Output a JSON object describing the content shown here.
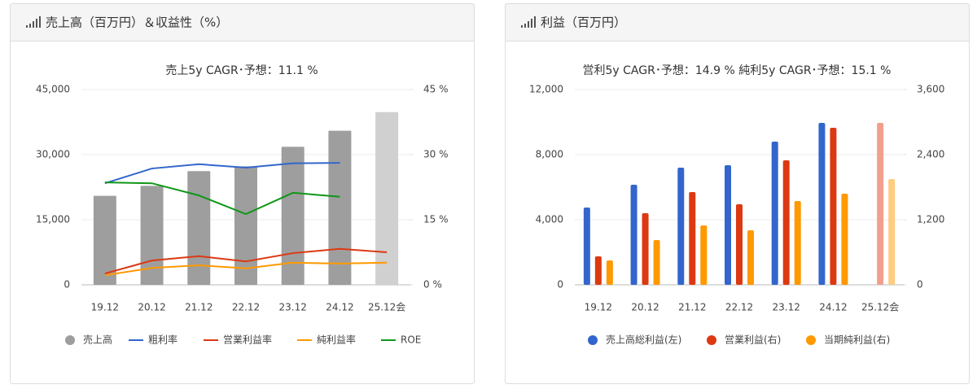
{
  "chart_data": [
    {
      "type": "bar_line",
      "title": "売上高（百万円）＆収益性（%）",
      "subtitle": "売上5y CAGR･予想：11.1 %",
      "categories": [
        "19.12",
        "20.12",
        "21.12",
        "22.12",
        "23.12",
        "24.12",
        "25.12会"
      ],
      "ylim": [
        0,
        45000
      ],
      "yticks": [
        0,
        {
          "value": 15000,
          "label": "15,000"
        },
        {
          "value": 30000,
          "label": "30,000"
        },
        {
          "value": 45000,
          "label": "45,000"
        }
      ],
      "y2lim": [
        0,
        45
      ],
      "y2ticks": [
        {
          "value": 0,
          "label": "0 %"
        },
        {
          "value": 15,
          "label": "15 %"
        },
        {
          "value": 30,
          "label": "30 %"
        },
        {
          "value": 45,
          "label": "45 %"
        }
      ],
      "grid": true,
      "series": [
        {
          "name": "売上高",
          "kind": "bar",
          "color": "#9e9e9e",
          "colors": [
            "#9e9e9e",
            "#9e9e9e",
            "#9e9e9e",
            "#9e9e9e",
            "#9e9e9e",
            "#9e9e9e",
            "#d0d0d0"
          ],
          "values": [
            20500,
            22800,
            26200,
            27300,
            31800,
            35500,
            39800
          ]
        },
        {
          "name": "粗利率",
          "kind": "line",
          "axis": "y2",
          "color": "#3366cc",
          "values": [
            23.4,
            26.8,
            27.8,
            27.0,
            28.0,
            28.1,
            null
          ]
        },
        {
          "name": "営業利益率",
          "kind": "line",
          "axis": "y2",
          "color": "#dc3912",
          "values": [
            2.6,
            5.6,
            6.6,
            5.4,
            7.3,
            8.3,
            7.5
          ]
        },
        {
          "name": "純利益率",
          "kind": "line",
          "axis": "y2",
          "color": "#ff9900",
          "values": [
            2.2,
            3.9,
            4.5,
            3.8,
            5.1,
            4.9,
            5.1
          ]
        },
        {
          "name": "ROE",
          "kind": "line",
          "axis": "y2",
          "color": "#109618",
          "values": [
            23.6,
            23.4,
            20.6,
            16.3,
            21.2,
            20.3,
            null
          ]
        }
      ]
    },
    {
      "type": "bar",
      "title": "利益（百万円）",
      "subtitle": "営利5y CAGR･予想：14.9 %  純利5y CAGR･予想：15.1 %",
      "categories": [
        "19.12",
        "20.12",
        "21.12",
        "22.12",
        "23.12",
        "24.12",
        "25.12会"
      ],
      "ylim": [
        0,
        12000
      ],
      "yticks": [
        0,
        {
          "value": 4000,
          "label": "4,000"
        },
        {
          "value": 8000,
          "label": "8,000"
        },
        {
          "value": 12000,
          "label": "12,000"
        }
      ],
      "y2lim": [
        0,
        3600
      ],
      "y2ticks": [
        0,
        {
          "value": 1200,
          "label": "1,200"
        },
        {
          "value": 2400,
          "label": "2,400"
        },
        {
          "value": 3600,
          "label": "3,600"
        }
      ],
      "grid": true,
      "series": [
        {
          "name": "売上高総利益(左)",
          "kind": "bar",
          "color": "#3366cc",
          "colors": [
            "#3366cc",
            "#3366cc",
            "#3366cc",
            "#3366cc",
            "#3366cc",
            "#3366cc",
            "#99b3e6"
          ],
          "values": [
            4750,
            6150,
            7200,
            7350,
            8800,
            9950,
            null
          ]
        },
        {
          "name": "営業利益(右)",
          "kind": "bar",
          "axis": "y2",
          "color": "#dc3912",
          "colors": [
            "#dc3912",
            "#dc3912",
            "#dc3912",
            "#dc3912",
            "#dc3912",
            "#dc3912",
            "#f0a08c"
          ],
          "values": [
            525,
            1320,
            1710,
            1485,
            2295,
            2895,
            2985
          ]
        },
        {
          "name": "当期純利益(右)",
          "kind": "bar",
          "axis": "y2",
          "color": "#ff9900",
          "colors": [
            "#ff9900",
            "#ff9900",
            "#ff9900",
            "#ff9900",
            "#ff9900",
            "#ff9900",
            "#ffcc80"
          ],
          "values": [
            450,
            825,
            1095,
            1005,
            1545,
            1680,
            1950
          ]
        }
      ]
    }
  ]
}
